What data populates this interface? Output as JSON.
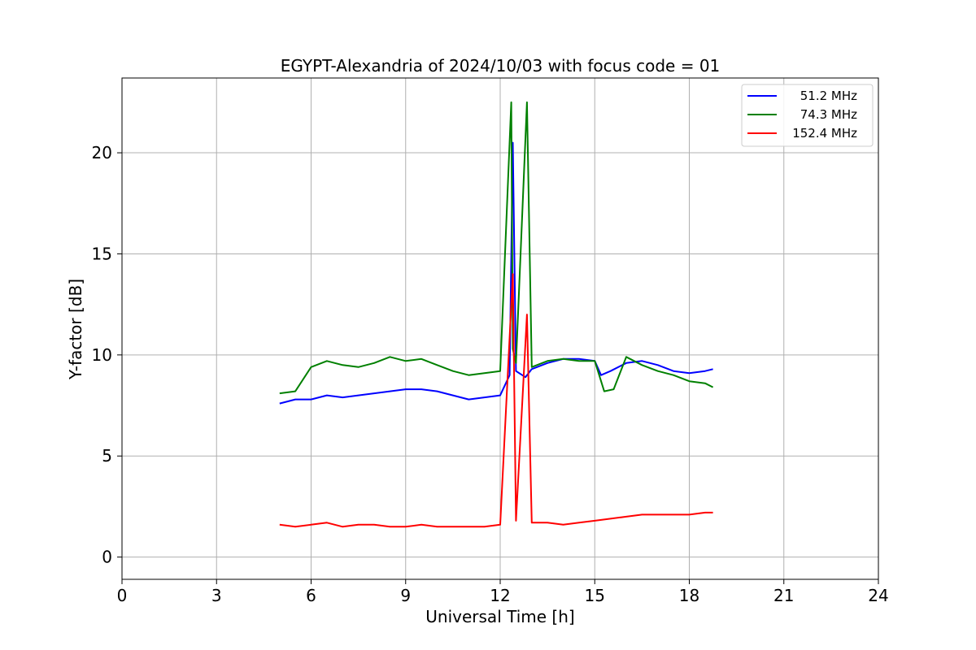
{
  "chart_data": {
    "type": "line",
    "title": "EGYPT-Alexandria of 2024/10/03 with focus code = 01",
    "xlabel": "Universal Time [h]",
    "ylabel": "Y-factor [dB]",
    "xlim": [
      0,
      24
    ],
    "ylim": [
      -1.1,
      23.7
    ],
    "xticks": [
      0,
      3,
      6,
      9,
      12,
      15,
      18,
      21,
      24
    ],
    "yticks": [
      0,
      5,
      10,
      15,
      20
    ],
    "grid": true,
    "legend_position": "top-right",
    "colors": {
      "51.2 MHz": "#0000ff",
      "74.3 MHz": "#008000",
      "152.4 MHz": "#ff0000"
    },
    "series": [
      {
        "name": "51.2 MHz",
        "color": "#0000ff",
        "x": [
          5.0,
          5.5,
          6.0,
          6.5,
          7.0,
          7.5,
          8.0,
          8.5,
          9.0,
          9.5,
          10.0,
          10.5,
          11.0,
          11.5,
          12.0,
          12.3,
          12.4,
          12.5,
          12.8,
          13.0,
          13.5,
          14.0,
          14.5,
          15.0,
          15.2,
          15.5,
          16.0,
          16.5,
          17.0,
          17.5,
          18.0,
          18.5,
          18.75
        ],
        "y": [
          7.6,
          7.8,
          7.8,
          8.0,
          7.9,
          8.0,
          8.1,
          8.2,
          8.3,
          8.3,
          8.2,
          8.0,
          7.8,
          7.9,
          8.0,
          9.0,
          20.5,
          9.2,
          8.9,
          9.3,
          9.6,
          9.8,
          9.8,
          9.7,
          9.0,
          9.2,
          9.6,
          9.7,
          9.5,
          9.2,
          9.1,
          9.2,
          9.3
        ]
      },
      {
        "name": "74.3 MHz",
        "color": "#008000",
        "x": [
          5.0,
          5.5,
          6.0,
          6.5,
          7.0,
          7.5,
          8.0,
          8.5,
          9.0,
          9.5,
          10.0,
          10.5,
          11.0,
          11.5,
          12.0,
          12.35,
          12.4,
          12.5,
          12.85,
          13.0,
          13.5,
          14.0,
          14.5,
          15.0,
          15.3,
          15.6,
          16.0,
          16.5,
          17.0,
          17.5,
          18.0,
          18.5,
          18.75
        ],
        "y": [
          8.1,
          8.2,
          9.4,
          9.7,
          9.5,
          9.4,
          9.6,
          9.9,
          9.7,
          9.8,
          9.5,
          9.2,
          9.0,
          9.1,
          9.2,
          22.5,
          10.3,
          9.6,
          22.5,
          9.4,
          9.7,
          9.8,
          9.7,
          9.7,
          8.2,
          8.3,
          9.9,
          9.5,
          9.2,
          9.0,
          8.7,
          8.6,
          8.4
        ]
      },
      {
        "name": "152.4 MHz",
        "color": "#ff0000",
        "x": [
          5.0,
          5.5,
          6.0,
          6.5,
          7.0,
          7.5,
          8.0,
          8.5,
          9.0,
          9.5,
          10.0,
          10.5,
          11.0,
          11.5,
          12.0,
          12.4,
          12.5,
          12.85,
          13.0,
          13.5,
          14.0,
          14.5,
          15.0,
          15.5,
          16.0,
          16.5,
          17.0,
          17.5,
          18.0,
          18.5,
          18.75
        ],
        "y": [
          1.6,
          1.5,
          1.6,
          1.7,
          1.5,
          1.6,
          1.6,
          1.5,
          1.5,
          1.6,
          1.5,
          1.5,
          1.5,
          1.5,
          1.6,
          14.0,
          1.8,
          12.0,
          1.7,
          1.7,
          1.6,
          1.7,
          1.8,
          1.9,
          2.0,
          2.1,
          2.1,
          2.1,
          2.1,
          2.2,
          2.2
        ]
      }
    ]
  }
}
